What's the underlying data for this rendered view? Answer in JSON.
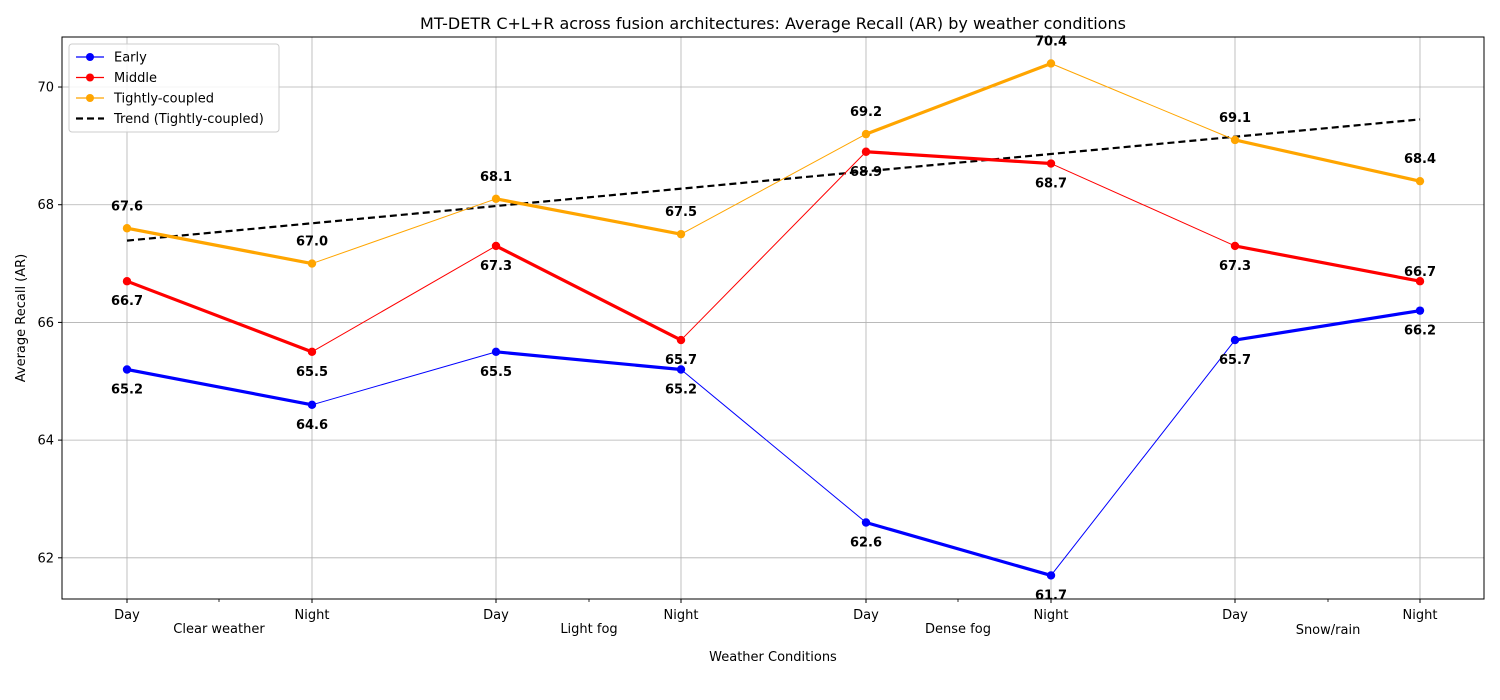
{
  "chart_data": {
    "type": "line",
    "title": "MT-DETR C+L+R across fusion architectures: Average Recall (AR) by weather conditions",
    "xlabel": "Weather Conditions",
    "ylabel": "Average Recall (AR)",
    "ylim": [
      61.3,
      70.85
    ],
    "yticks": [
      62,
      64,
      66,
      68,
      70
    ],
    "grid": true,
    "legend_position": "top-left",
    "categories": [
      "Day",
      "Night",
      "Day",
      "Night",
      "Day",
      "Night",
      "Day",
      "Night"
    ],
    "groups": [
      "Clear weather",
      "Light fog",
      "Dense fog",
      "Snow/rain"
    ],
    "series": [
      {
        "name": "Early",
        "color": "#0000ff",
        "values": [
          65.2,
          64.6,
          65.5,
          65.2,
          62.6,
          61.7,
          65.7,
          66.2
        ],
        "labels": [
          "65.2",
          "64.6",
          "65.5",
          "65.2",
          "62.6",
          "61.7",
          "65.7",
          "66.2"
        ]
      },
      {
        "name": "Middle",
        "color": "#ff0000",
        "values": [
          66.7,
          65.5,
          67.3,
          65.7,
          68.9,
          68.7,
          67.3,
          66.7
        ],
        "labels": [
          "66.7",
          "65.5",
          "67.3",
          "65.7",
          "68.9",
          "68.7",
          "67.3",
          "66.7"
        ]
      },
      {
        "name": "Tightly-coupled",
        "color": "#ffa500",
        "values": [
          67.6,
          67.0,
          68.1,
          67.5,
          69.2,
          70.4,
          69.1,
          68.4
        ],
        "labels": [
          "67.6",
          "67.0",
          "68.1",
          "67.5",
          "69.2",
          "70.4",
          "69.1",
          "68.4"
        ]
      }
    ],
    "trend": {
      "name": "Trend (Tightly-coupled)",
      "color": "#000000",
      "start": 67.39,
      "end": 69.45
    }
  }
}
